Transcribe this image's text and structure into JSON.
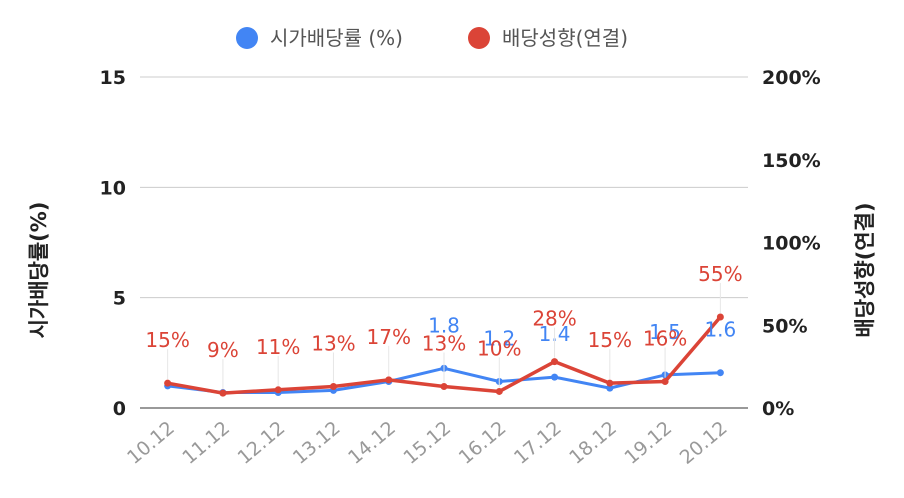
{
  "chart_data": {
    "type": "line",
    "categories": [
      "10.12",
      "11.12",
      "12.12",
      "13.12",
      "14.12",
      "15.12",
      "16.12",
      "17.12",
      "18.12",
      "19.12",
      "20.12"
    ],
    "series": [
      {
        "name": "시가배당률 (%)",
        "axis": "left",
        "color": "#4285f4",
        "values": [
          1.0,
          0.7,
          0.7,
          0.8,
          1.2,
          1.8,
          1.2,
          1.4,
          0.9,
          1.5,
          1.6
        ],
        "labels": [
          "",
          "",
          "",
          "",
          "",
          "1.8",
          "1.2",
          "1.4",
          "",
          "1.5",
          "1.6"
        ]
      },
      {
        "name": "배당성향(연결)",
        "axis": "right",
        "color": "#db4437",
        "values": [
          15,
          9,
          11,
          13,
          17,
          13,
          10,
          28,
          15,
          16,
          55
        ],
        "labels": [
          "15%",
          "9%",
          "11%",
          "13%",
          "17%",
          "13%",
          "10%",
          "28%",
          "15%",
          "16%",
          "55%"
        ]
      }
    ],
    "y_left": {
      "label": "시가배당률(%)",
      "ylim": [
        0,
        15
      ],
      "ticks": [
        "0",
        "5",
        "10",
        "15"
      ]
    },
    "y_right": {
      "label": "배당성향(연결)",
      "ylim": [
        0,
        200
      ],
      "ticks": [
        "0%",
        "50%",
        "100%",
        "150%",
        "200%"
      ]
    },
    "legend": {
      "position": "top"
    },
    "grid": true
  }
}
